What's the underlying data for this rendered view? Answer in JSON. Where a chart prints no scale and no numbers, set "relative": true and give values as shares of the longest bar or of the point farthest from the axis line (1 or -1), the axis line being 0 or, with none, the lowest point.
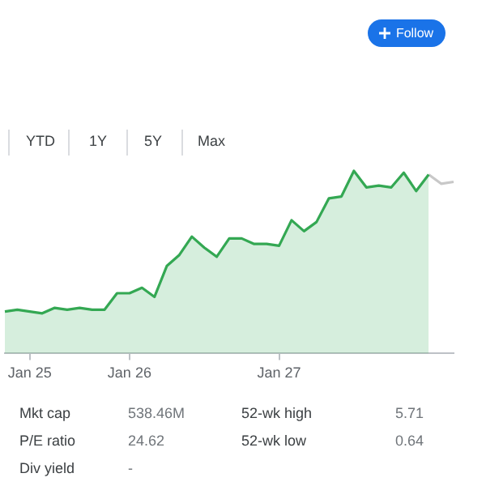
{
  "chart_data": {
    "type": "area",
    "relative": true,
    "legend": false,
    "marker": "none",
    "categories": [
      null,
      null,
      "Jan 25",
      null,
      null,
      null,
      null,
      null,
      null,
      null,
      "Jan 26",
      null,
      null,
      null,
      null,
      null,
      null,
      null,
      null,
      null,
      null,
      null,
      "Jan 27",
      null,
      null,
      null,
      null,
      null,
      null,
      null,
      null,
      null,
      null,
      null,
      null,
      null,
      null
    ],
    "series": [
      {
        "color": "#34a853",
        "values": [
          0.23,
          0.24,
          0.23,
          0.22,
          0.25,
          0.24,
          0.25,
          0.24,
          0.24,
          0.33,
          0.33,
          0.36,
          0.31,
          0.48,
          0.54,
          0.64,
          0.58,
          0.53,
          0.63,
          0.63,
          0.6,
          0.6,
          0.59,
          0.73,
          0.67,
          0.72,
          0.85,
          0.86,
          1,
          0.91,
          0.92,
          0.91,
          0.99,
          0.89,
          0.98,
          null,
          null
        ]
      },
      {
        "type": "line",
        "color": "#c8c8c8",
        "values": [
          null,
          null,
          null,
          null,
          null,
          null,
          null,
          null,
          null,
          null,
          null,
          null,
          null,
          null,
          null,
          null,
          null,
          null,
          null,
          null,
          null,
          null,
          null,
          null,
          null,
          null,
          null,
          null,
          null,
          null,
          null,
          null,
          null,
          null,
          0.98,
          0.93,
          0.94
        ]
      }
    ],
    "annotations": [
      "Follow",
      "YTD",
      "1Y",
      "5Y",
      "Max",
      "Mkt cap",
      "538.46M",
      "P/E ratio",
      "24.62",
      "Div yield",
      "-",
      "52-wk high",
      "5.71",
      "52-wk low",
      "0.64"
    ]
  }
}
